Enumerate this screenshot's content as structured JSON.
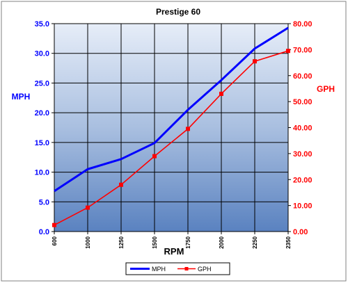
{
  "chart_data": {
    "type": "line",
    "title": "Prestige 60",
    "xlabel": "RPM",
    "ylabel_left": "MPH",
    "ylabel_right": "GPH",
    "categories": [
      "600",
      "1000",
      "1250",
      "1500",
      "1750",
      "2000",
      "2250",
      "2350"
    ],
    "ylim_left": [
      0,
      35
    ],
    "ylim_right": [
      0,
      80
    ],
    "yticks_left": [
      "0.0",
      "5.0",
      "10.0",
      "15.0",
      "20.0",
      "25.0",
      "30.0",
      "35.0"
    ],
    "yticks_right": [
      "0.00",
      "10.00",
      "20.00",
      "30.00",
      "40.00",
      "50.00",
      "60.00",
      "70.00",
      "80.00"
    ],
    "grid": true,
    "legend": "bottom",
    "series": [
      {
        "name": "MPH",
        "axis": "left",
        "color": "#0000ff",
        "markers": false,
        "values": [
          6.8,
          10.5,
          12.2,
          14.9,
          20.5,
          25.5,
          30.8,
          34.3
        ]
      },
      {
        "name": "GPH",
        "axis": "right",
        "color": "#ff0000",
        "markers": true,
        "values": [
          2.5,
          9.2,
          18.0,
          29.0,
          39.5,
          53.0,
          65.5,
          69.5
        ]
      }
    ]
  }
}
